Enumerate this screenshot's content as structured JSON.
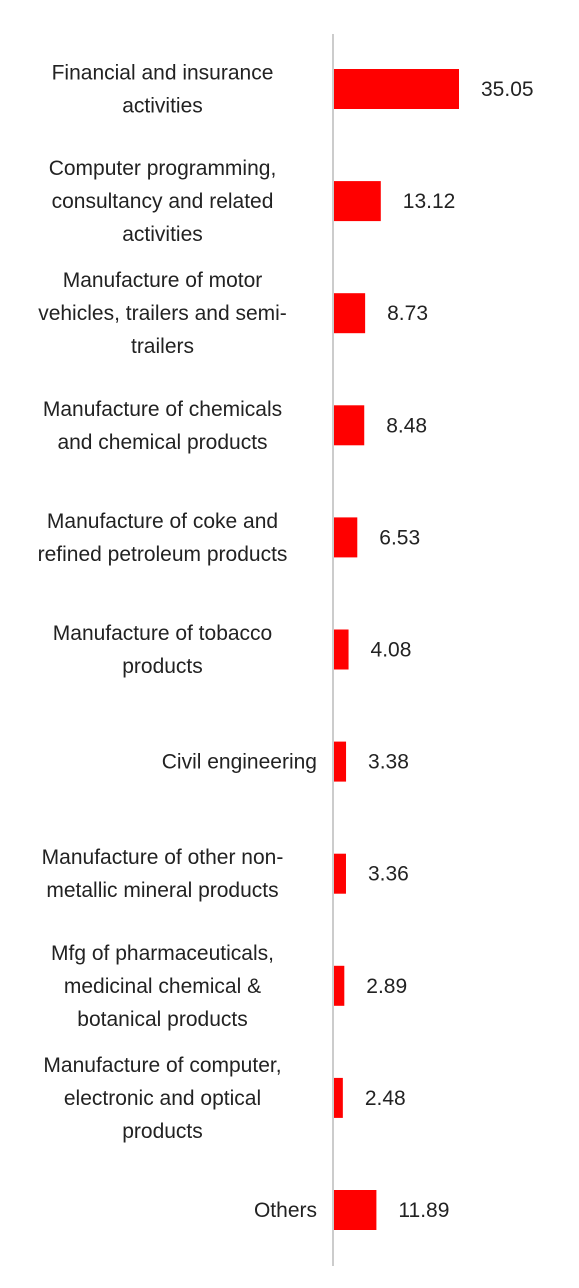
{
  "chart_data": {
    "type": "bar",
    "orientation": "horizontal",
    "categories": [
      [
        "Financial and insurance",
        "activities"
      ],
      [
        "Computer programming,",
        "consultancy and related",
        "activities"
      ],
      [
        "Manufacture of motor",
        "vehicles, trailers and semi-",
        "trailers"
      ],
      [
        "Manufacture of chemicals",
        "and chemical products"
      ],
      [
        "Manufacture of coke and",
        "refined petroleum products"
      ],
      [
        "Manufacture of tobacco",
        "products"
      ],
      [
        "Civil engineering"
      ],
      [
        "Manufacture of other non-",
        "metallic mineral products"
      ],
      [
        "Mfg of pharmaceuticals,",
        "medicinal chemical &",
        "botanical products"
      ],
      [
        "Manufacture of computer,",
        "electronic and optical",
        "products"
      ],
      [
        "Others"
      ]
    ],
    "values": [
      35.05,
      13.12,
      8.73,
      8.48,
      6.53,
      4.08,
      3.38,
      3.36,
      2.89,
      2.48,
      11.89
    ],
    "value_labels": [
      "35.05",
      "13.12",
      "8.73",
      "8.48",
      "6.53",
      "4.08",
      "3.38",
      "3.36",
      "2.89",
      "2.48",
      "11.89"
    ],
    "bar_color": "#ff0000",
    "axis_color": "#cccccc",
    "title": "",
    "xlabel": "",
    "ylabel": "",
    "xlim": [
      0,
      35.05
    ],
    "grid": false,
    "legend": "none"
  }
}
